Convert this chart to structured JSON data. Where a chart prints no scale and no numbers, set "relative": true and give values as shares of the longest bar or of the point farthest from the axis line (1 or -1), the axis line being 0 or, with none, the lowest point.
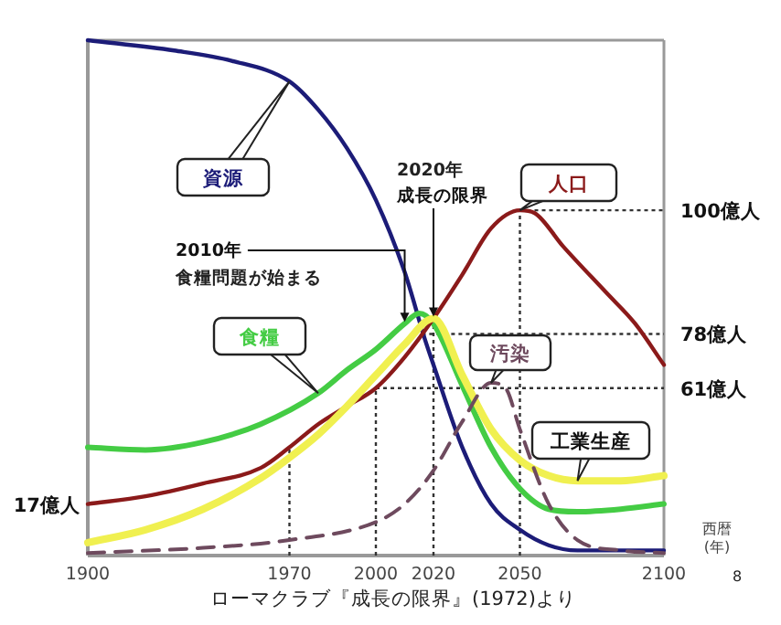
{
  "chart_data": {
    "type": "line",
    "relative": true,
    "xlim": [
      1900,
      2100
    ],
    "xticks": [
      1900,
      1970,
      2000,
      2020,
      2050,
      2100
    ],
    "xlabel": "西暦\n(年)",
    "grid": false,
    "legend": false,
    "marker": "none",
    "series": [
      {
        "name": "資源",
        "color": "#1c1c78",
        "line_style": "solid",
        "x": [
          1900,
          1930,
          1950,
          1970,
          1980,
          1990,
          2000,
          2010,
          2017,
          2020,
          2030,
          2040,
          2050,
          2060,
          2070,
          2100
        ],
        "values": [
          1.0,
          0.98,
          0.96,
          0.92,
          0.865,
          0.79,
          0.69,
          0.55,
          0.42,
          0.37,
          0.21,
          0.1,
          0.05,
          0.02,
          0.01,
          0.01
        ]
      },
      {
        "name": "食糧",
        "color": "#44cc44",
        "line_style": "solid",
        "x": [
          1900,
          1920,
          1940,
          1960,
          1980,
          1990,
          2000,
          2010,
          2015,
          2020,
          2030,
          2040,
          2050,
          2060,
          2070,
          2085,
          2100
        ],
        "values": [
          0.21,
          0.205,
          0.22,
          0.255,
          0.315,
          0.36,
          0.4,
          0.45,
          0.47,
          0.45,
          0.33,
          0.21,
          0.13,
          0.09,
          0.085,
          0.09,
          0.1
        ]
      },
      {
        "name": "人口",
        "color": "#8b1a1a",
        "line_style": "solid",
        "x": [
          1900,
          1920,
          1940,
          1960,
          1970,
          1980,
          1990,
          2000,
          2010,
          2020,
          2030,
          2040,
          2050,
          2055,
          2065,
          2080,
          2090,
          2100
        ],
        "values": [
          0.1,
          0.115,
          0.14,
          0.17,
          0.21,
          0.255,
          0.29,
          0.325,
          0.385,
          0.46,
          0.545,
          0.635,
          0.67,
          0.665,
          0.6,
          0.51,
          0.45,
          0.37
        ]
      },
      {
        "name": "工業生産",
        "color": "#f0f050",
        "line_style": "solid",
        "x": [
          1900,
          1920,
          1940,
          1960,
          1970,
          1980,
          1990,
          2000,
          2010,
          2020,
          2030,
          2040,
          2050,
          2060,
          2070,
          2085,
          2100
        ],
        "values": [
          0.025,
          0.05,
          0.09,
          0.15,
          0.19,
          0.235,
          0.29,
          0.35,
          0.41,
          0.46,
          0.35,
          0.245,
          0.185,
          0.155,
          0.145,
          0.145,
          0.155
        ]
      },
      {
        "name": "汚染",
        "color": "#6e4a5e",
        "line_style": "dashed",
        "x": [
          1900,
          1940,
          1970,
          2000,
          2010,
          2020,
          2030,
          2040,
          2045,
          2050,
          2060,
          2070,
          2085,
          2100
        ],
        "values": [
          0.005,
          0.015,
          0.03,
          0.065,
          0.1,
          0.165,
          0.26,
          0.335,
          0.325,
          0.245,
          0.1,
          0.03,
          0.01,
          0.005
        ]
      }
    ],
    "ref_lines": [
      {
        "axis": "x",
        "value": 1970,
        "color": "#333333",
        "line_style": "dotted"
      },
      {
        "axis": "x",
        "value": 2000,
        "color": "#333333",
        "line_style": "dotted"
      },
      {
        "axis": "x",
        "value": 2020,
        "color": "#333333",
        "line_style": "dotted"
      },
      {
        "axis": "x",
        "value": 2050,
        "color": "#333333",
        "line_style": "dotted"
      },
      {
        "axis": "y",
        "value": 0.67,
        "label": "100億人",
        "color": "#333333",
        "line_style": "dotted"
      },
      {
        "axis": "y",
        "value": 0.43,
        "label": "78億人",
        "color": "#333333",
        "line_style": "dotted"
      },
      {
        "axis": "y",
        "value": 0.325,
        "label": "61億人",
        "color": "#333333",
        "line_style": "dotted"
      }
    ],
    "annotations": [
      {
        "text": "2010年",
        "x": 2010,
        "y": 0.45
      },
      "食糧問題が始まる",
      "2020年",
      {
        "text": "成長の限界",
        "x": 2020,
        "y": 0.46
      },
      {
        "text": "17億人",
        "x": 1900,
        "y": 0.1
      },
      "ローマクラブ『成長の限界』(1972)より",
      "8"
    ]
  }
}
